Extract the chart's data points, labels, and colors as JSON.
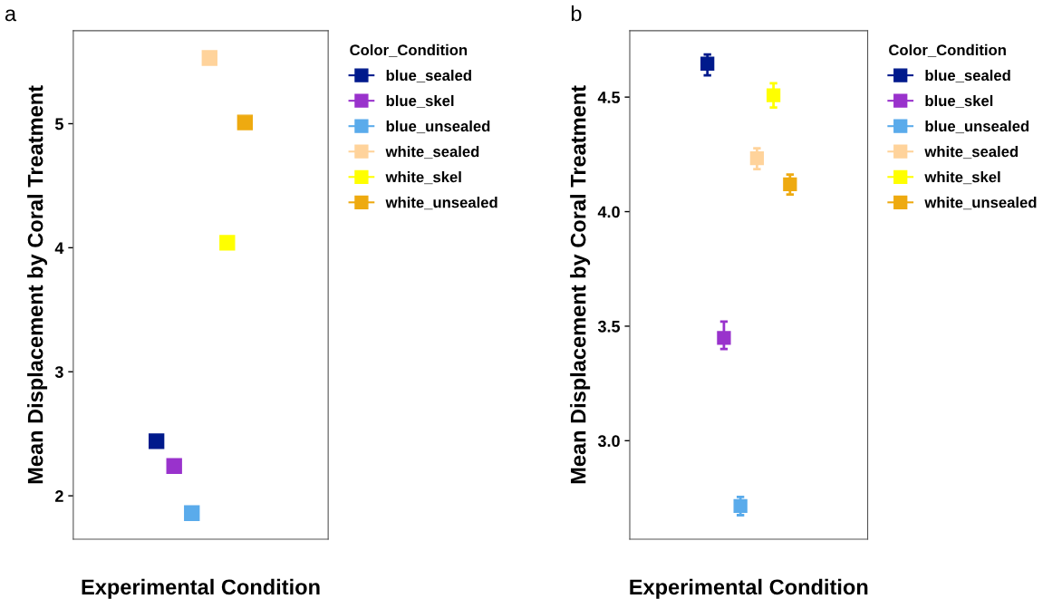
{
  "chart_data": [
    {
      "type": "scatter",
      "xlabel": "Experimental Condition",
      "ylabel": "Mean Displacement by Coral Treatment",
      "legend_title": "Color_Condition",
      "legend": "right",
      "marker": "square",
      "grid": false,
      "annotations": [
        "a"
      ],
      "categories": [
        null
      ],
      "ylim": [
        1.65,
        5.75
      ],
      "yticks": [
        2,
        3,
        4,
        5
      ],
      "series": [
        {
          "name": "blue_sealed",
          "color": "#001a8c",
          "values": [
            2.44
          ]
        },
        {
          "name": "blue_skel",
          "color": "#9932cc",
          "values": [
            2.24
          ]
        },
        {
          "name": "blue_unsealed",
          "color": "#5aabeb",
          "values": [
            1.86
          ]
        },
        {
          "name": "white_sealed",
          "color": "#ffd39b",
          "values": [
            5.53
          ]
        },
        {
          "name": "white_skel",
          "color": "#ffff00",
          "values": [
            4.04
          ]
        },
        {
          "name": "white_unsealed",
          "color": "#eeaa10",
          "values": [
            5.01
          ]
        }
      ]
    },
    {
      "type": "scatter",
      "xlabel": "Experimental Condition",
      "ylabel": "Mean Displacement by Coral Treatment",
      "legend_title": "Color_Condition",
      "legend": "right",
      "marker": "square",
      "grid": false,
      "annotations": [
        "b"
      ],
      "categories": [
        null
      ],
      "ylim": [
        2.57,
        4.79
      ],
      "yticks": [
        {
          "value": 3.0,
          "label": "3.0"
        },
        3.5,
        {
          "value": 4.0,
          "label": "4.0"
        },
        4.5
      ],
      "series": [
        {
          "name": "blue_sealed",
          "color": "#001a8c",
          "values": [
            4.646
          ],
          "errors": [
            [
              4.595,
              4.686
            ]
          ]
        },
        {
          "name": "blue_skel",
          "color": "#9932cc",
          "values": [
            3.449
          ],
          "errors": [
            [
              3.4,
              3.52
            ]
          ]
        },
        {
          "name": "blue_unsealed",
          "color": "#5aabeb",
          "values": [
            2.715
          ],
          "errors": [
            [
              2.675,
              2.755
            ]
          ]
        },
        {
          "name": "white_sealed",
          "color": "#ffd39b",
          "values": [
            4.233
          ],
          "errors": [
            [
              4.186,
              4.277
            ]
          ]
        },
        {
          "name": "white_skel",
          "color": "#ffff00",
          "values": [
            4.508
          ],
          "errors": [
            [
              4.455,
              4.56
            ]
          ]
        },
        {
          "name": "white_unsealed",
          "color": "#eeaa10",
          "values": [
            4.119
          ],
          "errors": [
            [
              4.075,
              4.162
            ]
          ]
        }
      ]
    }
  ]
}
